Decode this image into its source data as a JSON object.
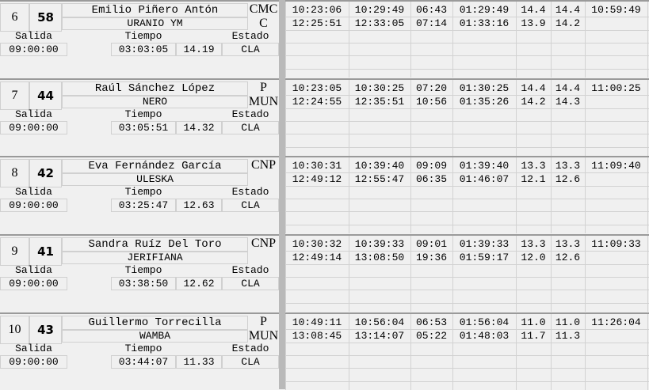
{
  "labels": {
    "salida": "Salida",
    "tiempo": "Tiempo",
    "estado": "Estado"
  },
  "riders": [
    {
      "pos": "6",
      "dorsal": "58",
      "name": "Emilio  Piñero Antón",
      "horse": "URANIO YM",
      "cat1": "CMC",
      "cat2": "C",
      "salida": "09:00:00",
      "tiempo": "03:03:05",
      "speed": "14.19",
      "estado": "CLA",
      "laps": [
        [
          "10:23:06",
          "10:29:49",
          "06:43",
          "01:29:49",
          "14.4",
          "14.4",
          "10:59:49"
        ],
        [
          "12:25:51",
          "12:33:05",
          "07:14",
          "01:33:16",
          "13.9",
          "14.2",
          ""
        ]
      ]
    },
    {
      "pos": "7",
      "dorsal": "44",
      "name": "Raúl  Sánchez López",
      "horse": "NERO",
      "cat1": "P",
      "cat2": "MUN",
      "salida": "09:00:00",
      "tiempo": "03:05:51",
      "speed": "14.32",
      "estado": "CLA",
      "laps": [
        [
          "10:23:05",
          "10:30:25",
          "07:20",
          "01:30:25",
          "14.4",
          "14.4",
          "11:00:25"
        ],
        [
          "12:24:55",
          "12:35:51",
          "10:56",
          "01:35:26",
          "14.2",
          "14.3",
          ""
        ]
      ]
    },
    {
      "pos": "8",
      "dorsal": "42",
      "name": "Eva  Fernández García",
      "horse": "ULESKA",
      "cat1": "CNP",
      "cat2": "",
      "salida": "09:00:00",
      "tiempo": "03:25:47",
      "speed": "12.63",
      "estado": "CLA",
      "laps": [
        [
          "10:30:31",
          "10:39:40",
          "09:09",
          "01:39:40",
          "13.3",
          "13.3",
          "11:09:40"
        ],
        [
          "12:49:12",
          "12:55:47",
          "06:35",
          "01:46:07",
          "12.1",
          "12.6",
          ""
        ]
      ]
    },
    {
      "pos": "9",
      "dorsal": "41",
      "name": "Sandra Ruíz Del Toro",
      "horse": "JERIFIANA",
      "cat1": "CNP",
      "cat2": "",
      "salida": "09:00:00",
      "tiempo": "03:38:50",
      "speed": "12.62",
      "estado": "CLA",
      "laps": [
        [
          "10:30:32",
          "10:39:33",
          "09:01",
          "01:39:33",
          "13.3",
          "13.3",
          "11:09:33"
        ],
        [
          "12:49:14",
          "13:08:50",
          "19:36",
          "01:59:17",
          "12.0",
          "12.6",
          ""
        ]
      ]
    },
    {
      "pos": "10",
      "dorsal": "43",
      "name": "Guillermo Torrecilla",
      "horse": "WAMBA",
      "cat1": "P",
      "cat2": "MUN",
      "salida": "09:00:00",
      "tiempo": "03:44:07",
      "speed": "11.33",
      "estado": "CLA",
      "laps": [
        [
          "10:49:11",
          "10:56:04",
          "06:53",
          "01:56:04",
          "11.0",
          "11.0",
          "11:26:04"
        ],
        [
          "13:08:45",
          "13:14:07",
          "05:22",
          "01:48:03",
          "11.7",
          "11.3",
          ""
        ]
      ]
    }
  ]
}
